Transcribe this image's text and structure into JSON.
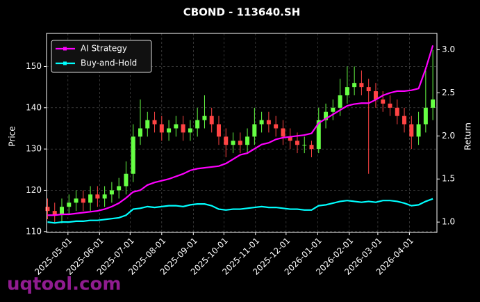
{
  "chart_data": {
    "type": "candlestick",
    "title": "CBOND - 113640.SH",
    "ylabel": "Price",
    "y2label": "Return",
    "watermark": "uqtool.com",
    "grid": true,
    "legend": "upper left",
    "xlim": [
      "2025-04-10",
      "2026-04-28"
    ],
    "xticks": [
      "2025-05-01",
      "2025-06-01",
      "2025-07-01",
      "2025-08-01",
      "2025-09-01",
      "2025-10-01",
      "2025-11-01",
      "2025-12-01",
      "2026-01-01",
      "2026-02-01",
      "2026-03-01",
      "2026-04-01"
    ],
    "ylim": [
      109.8,
      158
    ],
    "yticks": [
      110,
      120,
      130,
      140,
      150
    ],
    "y2lim": [
      0.88,
      3.19
    ],
    "y2ticks": [
      {
        "value": 1,
        "label": "1.0"
      },
      {
        "value": 1.5,
        "label": "1.5"
      },
      {
        "value": 2,
        "label": "2.0"
      },
      {
        "value": 2.5,
        "label": "2.5"
      },
      {
        "value": 3,
        "label": "3.0"
      }
    ],
    "x": [
      "2025-04-11",
      "2025-04-18",
      "2025-04-25",
      "2025-05-02",
      "2025-05-09",
      "2025-05-16",
      "2025-05-23",
      "2025-05-30",
      "2025-06-06",
      "2025-06-13",
      "2025-06-20",
      "2025-06-27",
      "2025-07-04",
      "2025-07-11",
      "2025-07-18",
      "2025-07-25",
      "2025-08-01",
      "2025-08-08",
      "2025-08-15",
      "2025-08-22",
      "2025-08-29",
      "2025-09-05",
      "2025-09-12",
      "2025-09-19",
      "2025-09-26",
      "2025-10-03",
      "2025-10-10",
      "2025-10-17",
      "2025-10-24",
      "2025-10-31",
      "2025-11-07",
      "2025-11-14",
      "2025-11-21",
      "2025-11-28",
      "2025-12-05",
      "2025-12-12",
      "2025-12-19",
      "2025-12-26",
      "2026-01-02",
      "2026-01-09",
      "2026-01-16",
      "2026-01-23",
      "2026-01-30",
      "2026-02-06",
      "2026-02-13",
      "2026-02-20",
      "2026-02-27",
      "2026-03-06",
      "2026-03-13",
      "2026-03-20",
      "2026-03-27",
      "2026-04-03",
      "2026-04-10",
      "2026-04-17",
      "2026-04-24"
    ],
    "candles": {
      "up_color": "#66ff44",
      "down_color": "#ff4444",
      "open": [
        116,
        115,
        114,
        116,
        117,
        118,
        117,
        119,
        118,
        119,
        120,
        121,
        124,
        133,
        135,
        137,
        136,
        134,
        135,
        136,
        134,
        135,
        137,
        138,
        136,
        133,
        131,
        132,
        131,
        133,
        136,
        137,
        136,
        135,
        133,
        132,
        131,
        131,
        130,
        137,
        139,
        140,
        143,
        145,
        146,
        145,
        144,
        142,
        141,
        140,
        138,
        136,
        133,
        136,
        140
      ],
      "high": [
        118,
        117,
        118,
        119,
        120,
        120,
        121,
        121,
        121,
        122,
        123,
        127,
        136,
        142,
        139,
        139,
        138,
        137,
        138,
        138,
        137,
        140,
        143,
        140,
        138,
        135,
        134,
        134,
        135,
        140,
        139,
        139,
        138,
        137,
        135,
        134,
        133,
        132,
        140,
        141,
        142,
        147,
        150,
        150,
        149,
        147,
        146,
        144,
        143,
        142,
        140,
        138,
        139,
        149,
        154
      ],
      "low": [
        113,
        112,
        112,
        114,
        115,
        115,
        115,
        116,
        116,
        117,
        118,
        119,
        122,
        131,
        133,
        134,
        132,
        132,
        133,
        132,
        132,
        133,
        135,
        134,
        131,
        128,
        129,
        129,
        129,
        131,
        134,
        134,
        133,
        131,
        130,
        129,
        129,
        128,
        129,
        135,
        137,
        138,
        141,
        143,
        143,
        124,
        140,
        139,
        138,
        136,
        134,
        130,
        131,
        134,
        137
      ],
      "close": [
        115,
        114,
        116,
        117,
        118,
        117,
        119,
        118,
        119,
        120,
        121,
        124,
        133,
        135,
        137,
        136,
        134,
        135,
        136,
        134,
        135,
        137,
        138,
        136,
        133,
        131,
        132,
        131,
        133,
        136,
        137,
        136,
        135,
        133,
        132,
        131,
        131,
        130,
        137,
        139,
        140,
        143,
        145,
        146,
        145,
        144,
        142,
        141,
        140,
        138,
        136,
        133,
        136,
        140,
        142
      ]
    },
    "series": [
      {
        "name": "AI Strategy",
        "color": "#ff00ff",
        "axis": "y2",
        "values": [
          1.08,
          1.08,
          1.09,
          1.09,
          1.1,
          1.11,
          1.12,
          1.13,
          1.15,
          1.18,
          1.22,
          1.28,
          1.35,
          1.37,
          1.43,
          1.46,
          1.48,
          1.5,
          1.53,
          1.56,
          1.6,
          1.62,
          1.63,
          1.64,
          1.65,
          1.68,
          1.73,
          1.78,
          1.8,
          1.85,
          1.9,
          1.92,
          1.96,
          1.98,
          1.99,
          2.0,
          2.01,
          2.03,
          2.15,
          2.2,
          2.25,
          2.3,
          2.35,
          2.37,
          2.38,
          2.38,
          2.42,
          2.47,
          2.5,
          2.52,
          2.52,
          2.53,
          2.55,
          2.78,
          3.05
        ]
      },
      {
        "name": "Buy-and-Hold",
        "color": "#00ffff",
        "axis": "y2",
        "values": [
          1.0,
          0.99,
          1.0,
          1.0,
          1.01,
          1.01,
          1.02,
          1.02,
          1.03,
          1.04,
          1.05,
          1.08,
          1.15,
          1.16,
          1.18,
          1.17,
          1.18,
          1.19,
          1.19,
          1.18,
          1.2,
          1.21,
          1.21,
          1.19,
          1.15,
          1.14,
          1.15,
          1.15,
          1.16,
          1.17,
          1.18,
          1.17,
          1.17,
          1.16,
          1.15,
          1.15,
          1.14,
          1.14,
          1.19,
          1.2,
          1.22,
          1.24,
          1.25,
          1.24,
          1.23,
          1.24,
          1.23,
          1.25,
          1.25,
          1.24,
          1.22,
          1.19,
          1.2,
          1.24,
          1.27
        ]
      }
    ]
  }
}
